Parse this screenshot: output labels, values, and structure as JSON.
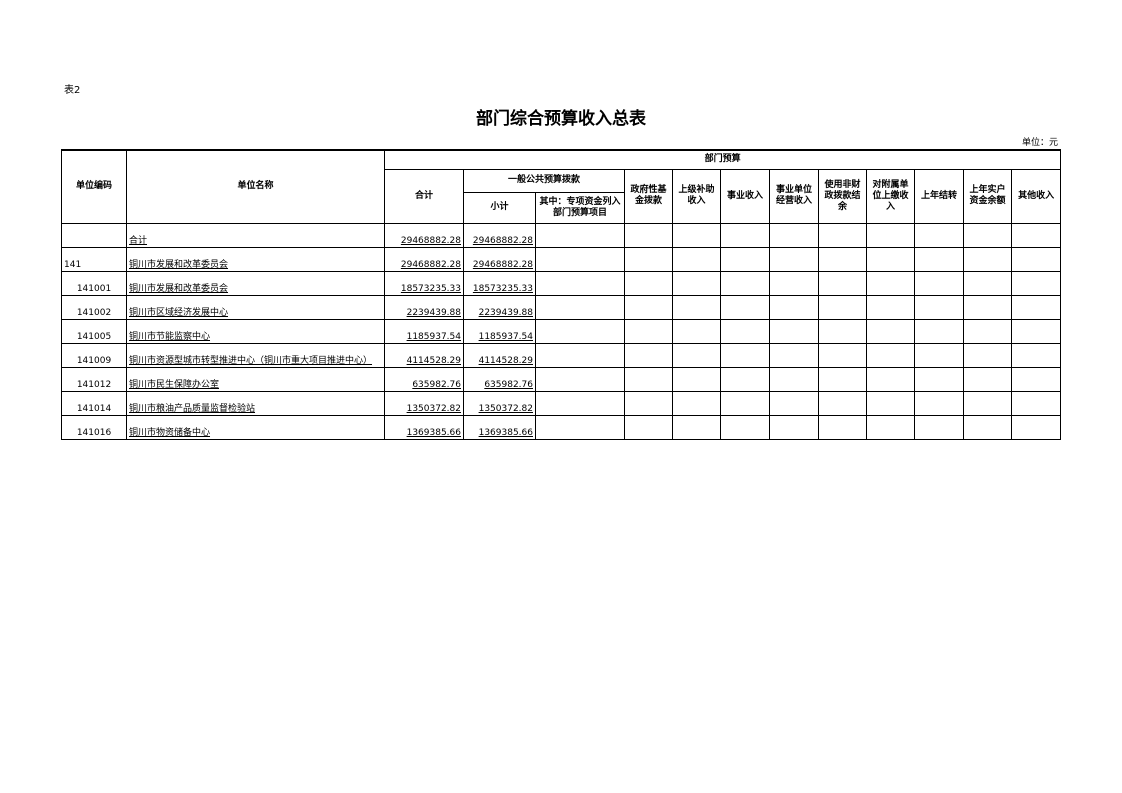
{
  "label": "表2",
  "title": "部门综合预算收入总表",
  "unit": "单位：元",
  "headers": {
    "code": "单位编码",
    "name": "单位名称",
    "dept_budget": "部门预算",
    "total": "合计",
    "general": "一般公共预算拨款",
    "subtotal": "小计",
    "special": "其中：专项资金列入部门预算项目",
    "gov_fund": "政府性基金拨款",
    "superior": "上级补助收入",
    "business": "事业收入",
    "operating": "事业单位经营收入",
    "nonfiscal": "使用非财政拨款结余",
    "subordinate": "对附属单位上缴收入",
    "carryover": "上年结转",
    "account": "上年实户资金余额",
    "other": "其他收入"
  },
  "rows": [
    {
      "code": "",
      "name": "合计",
      "total": "29468882.28",
      "subtotal": "29468882.28"
    },
    {
      "code": "141",
      "name": "铜川市发展和改革委员会",
      "total": "29468882.28",
      "subtotal": "29468882.28"
    },
    {
      "code": "141001",
      "name": "铜川市发展和改革委员会",
      "total": "18573235.33",
      "subtotal": "18573235.33"
    },
    {
      "code": "141002",
      "name": "铜川市区域经济发展中心",
      "total": "2239439.88",
      "subtotal": "2239439.88"
    },
    {
      "code": "141005",
      "name": "铜川市节能监察中心",
      "total": "1185937.54",
      "subtotal": "1185937.54"
    },
    {
      "code": "141009",
      "name": "铜川市资源型城市转型推进中心（铜川市重大项目推进中心）",
      "total": "4114528.29",
      "subtotal": "4114528.29"
    },
    {
      "code": "141012",
      "name": "铜川市民生保障办公室",
      "total": "635982.76",
      "subtotal": "635982.76"
    },
    {
      "code": "141014",
      "name": "铜川市粮油产品质量监督检验站",
      "total": "1350372.82",
      "subtotal": "1350372.82"
    },
    {
      "code": "141016",
      "name": "铜川市物资储备中心",
      "total": "1369385.66",
      "subtotal": "1369385.66"
    }
  ]
}
